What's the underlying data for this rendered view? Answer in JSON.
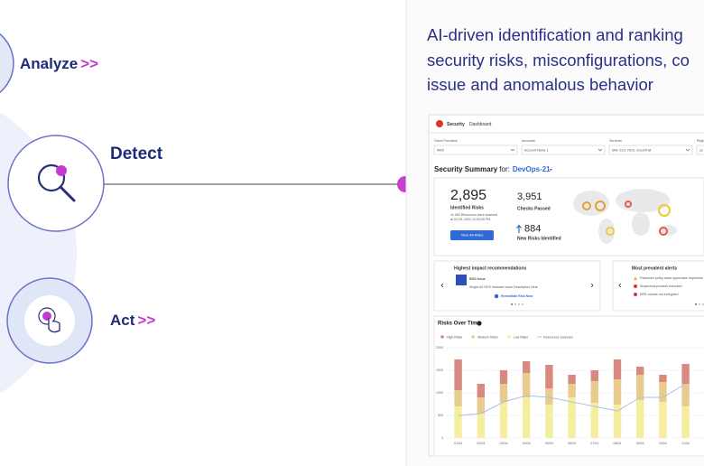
{
  "steps": [
    {
      "label": "Analyze",
      "arrow": ">>"
    },
    {
      "label": "Detect"
    },
    {
      "label": "Act",
      "arrow": ">>"
    }
  ],
  "headline": [
    "AI-driven identification and ranking",
    "security risks, misconfigurations, co",
    "issue and anomalous behavior"
  ],
  "dashboard": {
    "app": "Security",
    "page": "Dashboard",
    "filters": [
      {
        "label": "Cloud Providers",
        "value": "AWS"
      },
      {
        "label": "Accounts",
        "value": "Account Name 1"
      },
      {
        "label": "Services",
        "value": "IAM, EC2, RDS, CloudTrail"
      },
      {
        "label": "Regi",
        "value": "us"
      }
    ],
    "summary_title": "Security Summary",
    "summary_for": "for:",
    "summary_env": "DevOps-21",
    "identified": "2,895",
    "identified_label": "Identified Risks",
    "scan_note": [
      "11,083 Resources were scanned",
      "at 02.25, 2021 12:00:00 PM"
    ],
    "view_button": "View All Risks",
    "checks": "3,951",
    "checks_label": "Checks Passed",
    "new_risks": "884",
    "new_risks_label": "New Risks Identified",
    "recommendations": {
      "title": "Highest impact recommendations",
      "item_title": "RDS Issue",
      "item_desc": "Single AZ RDS Instance Issue Description Here",
      "action": "Remediate Risk Now"
    },
    "alerts": {
      "title": "Most prevalent alerts",
      "items": [
        "Password policy lacks uppercase requireme",
        "Suspicious process executed",
        "EBS volume not encrypted"
      ]
    }
  },
  "chart_data": {
    "type": "stacked-bar",
    "title": "Risks Over Time",
    "categories": [
      "01/04",
      "02/04",
      "03/04",
      "04/04",
      "05/04",
      "06/04",
      "07/04",
      "08/04",
      "09/04",
      "10/04",
      "11/04"
    ],
    "series": [
      {
        "name": "High Risks",
        "color": "#d98a80",
        "values": [
          680,
          300,
          300,
          260,
          520,
          200,
          240,
          440,
          180,
          160,
          440
        ]
      },
      {
        "name": "Medium Risks",
        "color": "#e8cc8e",
        "values": [
          360,
          360,
          400,
          540,
          360,
          300,
          480,
          560,
          560,
          440,
          500
        ]
      },
      {
        "name": "Low Risks",
        "color": "#f4ee9e",
        "values": [
          700,
          540,
          800,
          900,
          740,
          900,
          780,
          740,
          840,
          800,
          700
        ]
      },
      {
        "name": "Resources Scanned",
        "color": "#a8bfe9",
        "type": "line",
        "values": [
          500,
          540,
          800,
          940,
          900,
          800,
          700,
          600,
          900,
          900,
          1200
        ]
      }
    ],
    "ylim": [
      0,
      2000
    ],
    "yticks": [
      0,
      500,
      1000,
      1500,
      2000
    ],
    "grid": true
  }
}
